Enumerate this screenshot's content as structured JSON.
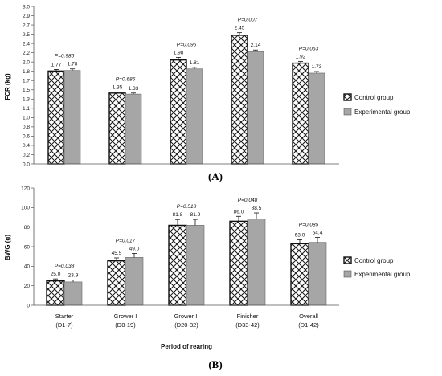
{
  "colors": {
    "control_fill": "#ffffff",
    "control_hatch": "#1a1a1a",
    "experimental": "#a6a6a6"
  },
  "chart_data": [
    {
      "panel": "(A)",
      "type": "bar",
      "categories": [
        "",
        "",
        "",
        "",
        ""
      ],
      "ylabel": "FCR (kg)",
      "xlabel": "",
      "ylim": [
        0.0,
        3.0
      ],
      "yticks": [
        "0.0",
        "0.2",
        "0.4",
        "0.6",
        "0.8",
        "1.0",
        "1.1",
        "1.3",
        "1.5",
        "1.7",
        "1.8",
        "2.0",
        "2.2",
        "2.4",
        "2.5",
        "2.7",
        "2.9",
        "3.0"
      ],
      "series": [
        {
          "name": "Control group",
          "values": [
            1.77,
            1.35,
            1.98,
            2.45,
            1.92
          ],
          "labels": [
            "1.77",
            "1.35",
            "1.98",
            "2.45",
            "1.92"
          ],
          "errors": [
            0.03,
            0.02,
            0.05,
            0.05,
            0.03
          ]
        },
        {
          "name": "Experimental group",
          "values": [
            1.78,
            1.33,
            1.81,
            2.14,
            1.73
          ],
          "labels": [
            "1.78",
            "1.33",
            "1.81",
            "2.14",
            "1.73"
          ],
          "errors": [
            0.03,
            0.02,
            0.03,
            0.03,
            0.03
          ]
        }
      ],
      "pvalues": [
        "P=0.985",
        "P=0.685",
        "P=0.095",
        "P=0.007",
        "P=0.063"
      ],
      "legend": "right",
      "grid": false
    },
    {
      "panel": "(B)",
      "type": "bar",
      "categories": [
        "Starter",
        "Grower I",
        "Grower II",
        "Finisher",
        "Overall"
      ],
      "category_sublabels": [
        "(D1-7)",
        "(D8-19)",
        "(D20-32)",
        "(D33-42)",
        "(D1-42)"
      ],
      "ylabel": "BWG (g)",
      "xlabel": "Period of rearing",
      "ylim": [
        0,
        120
      ],
      "yticks": [
        "0",
        "20",
        "40",
        "60",
        "80",
        "100",
        "120"
      ],
      "series": [
        {
          "name": "Control group",
          "values": [
            25.0,
            45.5,
            81.8,
            86.0,
            63.0
          ],
          "labels": [
            "25.0",
            "45.5",
            "81.8",
            "86.0",
            "63.0"
          ],
          "errors": [
            2.0,
            3.0,
            6.0,
            5.0,
            4.0
          ]
        },
        {
          "name": "Experimental group",
          "values": [
            23.9,
            49.0,
            81.9,
            88.5,
            64.4
          ],
          "labels": [
            "23.9",
            "49.0",
            "81.9",
            "88.5",
            "64.4"
          ],
          "errors": [
            2.0,
            4.0,
            6.0,
            6.0,
            5.0
          ]
        }
      ],
      "pvalues": [
        "P=0.038",
        "P=0.017",
        "P=0.518",
        "P=0.048",
        "P=0.085"
      ],
      "legend": "right",
      "grid": false
    }
  ]
}
